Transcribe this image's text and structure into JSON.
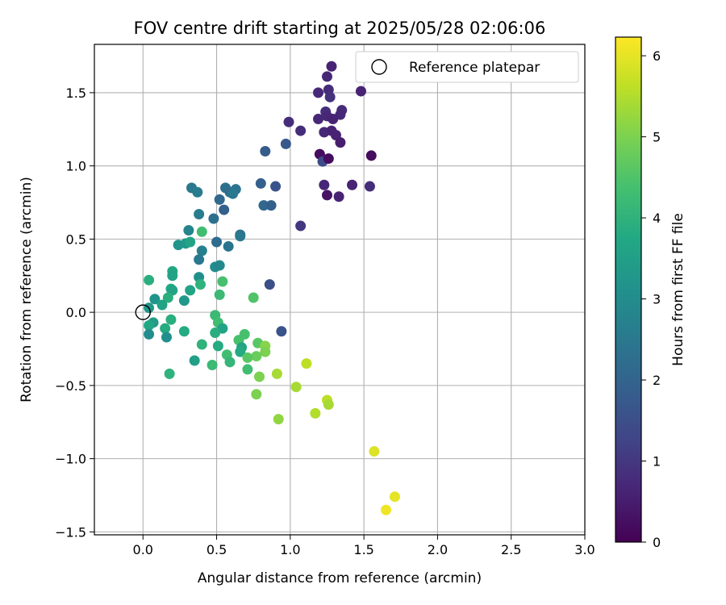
{
  "chart_data": {
    "type": "scatter",
    "title": "FOV centre drift starting at 2025/05/28 02:06:06",
    "xlabel": "Angular distance from reference (arcmin)",
    "ylabel": "Rotation from reference (arcmin)",
    "xlim": [
      -0.33,
      3.0
    ],
    "ylim": [
      -1.52,
      1.83
    ],
    "xticks": [
      0.0,
      0.5,
      1.0,
      1.5,
      2.0,
      2.5,
      3.0
    ],
    "xtick_labels": [
      "0.0",
      "0.5",
      "1.0",
      "1.5",
      "2.0",
      "2.5",
      "3.0"
    ],
    "yticks": [
      -1.5,
      -1.0,
      -0.5,
      0.0,
      0.5,
      1.0,
      1.5
    ],
    "ytick_labels": [
      "−1.5",
      "−1.0",
      "−0.5",
      "0.0",
      "0.5",
      "1.0",
      "1.5"
    ],
    "grid": true,
    "legend": {
      "position": "top-right",
      "entries": [
        "Reference platepar"
      ]
    },
    "reference_point": {
      "x": 0.0,
      "y": 0.0,
      "marker": "open-circle"
    },
    "colorbar": {
      "label": "Hours from first FF file",
      "range": [
        0,
        6.23
      ],
      "ticks": [
        0,
        1,
        2,
        3,
        4,
        5,
        6
      ],
      "tick_labels": [
        "0",
        "1",
        "2",
        "3",
        "4",
        "5",
        "6"
      ],
      "colormap": "viridis"
    },
    "points": [
      {
        "x": 1.28,
        "y": 1.68,
        "c": 0.6
      },
      {
        "x": 1.48,
        "y": 1.51,
        "c": 0.6
      },
      {
        "x": 1.19,
        "y": 1.5,
        "c": 0.7
      },
      {
        "x": 1.25,
        "y": 1.61,
        "c": 0.7
      },
      {
        "x": 1.26,
        "y": 1.52,
        "c": 0.8
      },
      {
        "x": 1.27,
        "y": 1.47,
        "c": 0.9
      },
      {
        "x": 1.35,
        "y": 1.38,
        "c": 0.8
      },
      {
        "x": 1.34,
        "y": 1.35,
        "c": 0.7
      },
      {
        "x": 1.24,
        "y": 1.37,
        "c": 0.8
      },
      {
        "x": 1.25,
        "y": 1.34,
        "c": 0.7
      },
      {
        "x": 1.29,
        "y": 1.32,
        "c": 0.6
      },
      {
        "x": 1.19,
        "y": 1.32,
        "c": 0.7
      },
      {
        "x": 0.99,
        "y": 1.3,
        "c": 0.8
      },
      {
        "x": 1.07,
        "y": 1.24,
        "c": 0.8
      },
      {
        "x": 1.23,
        "y": 1.23,
        "c": 0.7
      },
      {
        "x": 1.28,
        "y": 1.24,
        "c": 0.6
      },
      {
        "x": 1.31,
        "y": 1.21,
        "c": 0.6
      },
      {
        "x": 1.34,
        "y": 1.16,
        "c": 0.5
      },
      {
        "x": 1.2,
        "y": 1.08,
        "c": 0.2
      },
      {
        "x": 1.55,
        "y": 1.07,
        "c": 0.2
      },
      {
        "x": 1.22,
        "y": 1.03,
        "c": 1.4
      },
      {
        "x": 1.26,
        "y": 1.05,
        "c": 0.2
      },
      {
        "x": 1.23,
        "y": 0.87,
        "c": 0.7
      },
      {
        "x": 1.42,
        "y": 0.87,
        "c": 0.6
      },
      {
        "x": 1.54,
        "y": 0.86,
        "c": 0.8
      },
      {
        "x": 1.25,
        "y": 0.8,
        "c": 0.3
      },
      {
        "x": 1.33,
        "y": 0.79,
        "c": 0.6
      },
      {
        "x": 1.07,
        "y": 0.59,
        "c": 1.0
      },
      {
        "x": 0.97,
        "y": 1.15,
        "c": 1.7
      },
      {
        "x": 0.83,
        "y": 1.1,
        "c": 1.8
      },
      {
        "x": 0.8,
        "y": 0.88,
        "c": 1.9
      },
      {
        "x": 0.9,
        "y": 0.86,
        "c": 1.6
      },
      {
        "x": 0.82,
        "y": 0.73,
        "c": 2.1
      },
      {
        "x": 0.87,
        "y": 0.73,
        "c": 1.9
      },
      {
        "x": 0.86,
        "y": 0.19,
        "c": 1.5
      },
      {
        "x": 0.94,
        "y": -0.13,
        "c": 1.6
      },
      {
        "x": 0.33,
        "y": 0.85,
        "c": 2.5
      },
      {
        "x": 0.37,
        "y": 0.82,
        "c": 2.6
      },
      {
        "x": 0.56,
        "y": 0.85,
        "c": 2.3
      },
      {
        "x": 0.59,
        "y": 0.82,
        "c": 2.2
      },
      {
        "x": 0.63,
        "y": 0.84,
        "c": 2.4
      },
      {
        "x": 0.61,
        "y": 0.81,
        "c": 2.5
      },
      {
        "x": 0.52,
        "y": 0.77,
        "c": 2.1
      },
      {
        "x": 0.55,
        "y": 0.7,
        "c": 1.9
      },
      {
        "x": 0.38,
        "y": 0.67,
        "c": 2.6
      },
      {
        "x": 0.48,
        "y": 0.64,
        "c": 2.3
      },
      {
        "x": 0.31,
        "y": 0.56,
        "c": 2.8
      },
      {
        "x": 0.66,
        "y": 0.53,
        "c": 2.3
      },
      {
        "x": 0.66,
        "y": 0.52,
        "c": 2.5
      },
      {
        "x": 0.5,
        "y": 0.48,
        "c": 2.2
      },
      {
        "x": 0.58,
        "y": 0.45,
        "c": 2.4
      },
      {
        "x": 0.24,
        "y": 0.46,
        "c": 3.2
      },
      {
        "x": 0.29,
        "y": 0.47,
        "c": 3.3
      },
      {
        "x": 0.32,
        "y": 0.48,
        "c": 3.6
      },
      {
        "x": 0.4,
        "y": 0.42,
        "c": 2.7
      },
      {
        "x": 0.38,
        "y": 0.36,
        "c": 2.5
      },
      {
        "x": 0.4,
        "y": 0.55,
        "c": 4.3
      },
      {
        "x": 0.49,
        "y": 0.31,
        "c": 3.0
      },
      {
        "x": 0.52,
        "y": 0.32,
        "c": 2.9
      },
      {
        "x": 0.2,
        "y": 0.28,
        "c": 3.7
      },
      {
        "x": 0.2,
        "y": 0.25,
        "c": 3.6
      },
      {
        "x": 0.38,
        "y": 0.24,
        "c": 3.1
      },
      {
        "x": 0.39,
        "y": 0.19,
        "c": 4.0
      },
      {
        "x": 0.32,
        "y": 0.15,
        "c": 3.6
      },
      {
        "x": 0.54,
        "y": 0.21,
        "c": 4.4
      },
      {
        "x": 0.04,
        "y": 0.22,
        "c": 3.9
      },
      {
        "x": 0.19,
        "y": 0.16,
        "c": 3.8
      },
      {
        "x": 0.2,
        "y": 0.15,
        "c": 3.6
      },
      {
        "x": 0.17,
        "y": 0.1,
        "c": 3.9
      },
      {
        "x": 0.08,
        "y": 0.09,
        "c": 3.2
      },
      {
        "x": 0.13,
        "y": 0.05,
        "c": 3.6
      },
      {
        "x": 0.28,
        "y": 0.08,
        "c": 3.3
      },
      {
        "x": 0.52,
        "y": 0.12,
        "c": 4.2
      },
      {
        "x": 0.75,
        "y": 0.1,
        "c": 4.5
      },
      {
        "x": 0.04,
        "y": 0.03,
        "c": 3.3
      },
      {
        "x": 0.49,
        "y": -0.02,
        "c": 4.2
      },
      {
        "x": 0.19,
        "y": -0.05,
        "c": 3.9
      },
      {
        "x": 0.07,
        "y": -0.07,
        "c": 3.4
      },
      {
        "x": 0.04,
        "y": -0.09,
        "c": 3.7
      },
      {
        "x": 0.51,
        "y": -0.07,
        "c": 4.3
      },
      {
        "x": 0.15,
        "y": -0.11,
        "c": 3.8
      },
      {
        "x": 0.54,
        "y": -0.11,
        "c": 3.6
      },
      {
        "x": 0.49,
        "y": -0.14,
        "c": 3.9
      },
      {
        "x": 0.28,
        "y": -0.13,
        "c": 3.8
      },
      {
        "x": 0.04,
        "y": -0.15,
        "c": 3.0
      },
      {
        "x": 0.16,
        "y": -0.17,
        "c": 3.1
      },
      {
        "x": 0.69,
        "y": -0.15,
        "c": 4.4
      },
      {
        "x": 0.4,
        "y": -0.22,
        "c": 4.0
      },
      {
        "x": 0.51,
        "y": -0.23,
        "c": 3.8
      },
      {
        "x": 0.65,
        "y": -0.19,
        "c": 4.4
      },
      {
        "x": 0.67,
        "y": -0.24,
        "c": 3.6
      },
      {
        "x": 0.66,
        "y": -0.27,
        "c": 3.8
      },
      {
        "x": 0.78,
        "y": -0.21,
        "c": 4.6
      },
      {
        "x": 0.83,
        "y": -0.23,
        "c": 5.1
      },
      {
        "x": 0.83,
        "y": -0.27,
        "c": 5.0
      },
      {
        "x": 0.77,
        "y": -0.3,
        "c": 4.8
      },
      {
        "x": 0.57,
        "y": -0.29,
        "c": 4.3
      },
      {
        "x": 0.71,
        "y": -0.31,
        "c": 4.6
      },
      {
        "x": 0.59,
        "y": -0.34,
        "c": 4.1
      },
      {
        "x": 0.35,
        "y": -0.33,
        "c": 3.5
      },
      {
        "x": 0.47,
        "y": -0.36,
        "c": 4.2
      },
      {
        "x": 0.71,
        "y": -0.39,
        "c": 4.3
      },
      {
        "x": 0.18,
        "y": -0.42,
        "c": 4.0
      },
      {
        "x": 0.79,
        "y": -0.44,
        "c": 5.0
      },
      {
        "x": 0.91,
        "y": -0.42,
        "c": 5.4
      },
      {
        "x": 1.11,
        "y": -0.35,
        "c": 5.6
      },
      {
        "x": 1.04,
        "y": -0.51,
        "c": 5.4
      },
      {
        "x": 0.77,
        "y": -0.56,
        "c": 5.0
      },
      {
        "x": 1.25,
        "y": -0.6,
        "c": 5.6
      },
      {
        "x": 1.26,
        "y": -0.63,
        "c": 5.4
      },
      {
        "x": 1.17,
        "y": -0.69,
        "c": 5.5
      },
      {
        "x": 0.92,
        "y": -0.73,
        "c": 5.2
      },
      {
        "x": 1.57,
        "y": -0.95,
        "c": 5.9
      },
      {
        "x": 1.71,
        "y": -1.26,
        "c": 6.0
      },
      {
        "x": 1.65,
        "y": -1.35,
        "c": 6.1
      }
    ]
  }
}
